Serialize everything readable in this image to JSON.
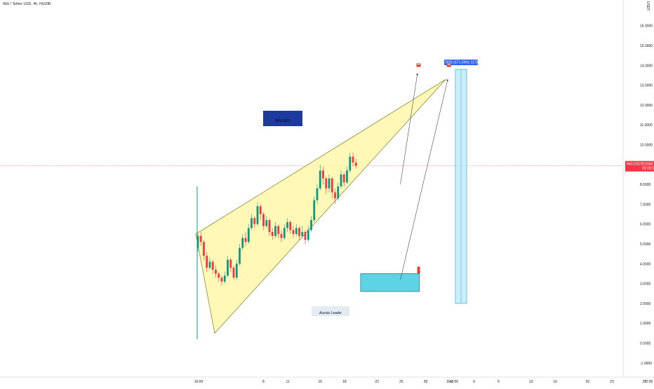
{
  "header": {
    "title": "IMX / Tether USD, 4h, HUOBI"
  },
  "currency": "USDT",
  "chart_data": {
    "type": "candlestick",
    "symbol": "IMXUSDT",
    "ylim": [
      -1.0,
      17.0
    ],
    "y_ticks": [
      "16.0000",
      "15.0000",
      "14.0000",
      "13.0000",
      "12.0000",
      "11.0000",
      "10.0000",
      "9.0000",
      "8.0000",
      "7.0000",
      "6.0000",
      "5.0000",
      "4.0000",
      "3.0000",
      "2.0000",
      "1.0000",
      "0.0000",
      "-1.0000"
    ],
    "y_tick_values": [
      16,
      15,
      14,
      13,
      12,
      11,
      10,
      9,
      8,
      7,
      6,
      5,
      4,
      3,
      2,
      1,
      0,
      -1
    ],
    "x_ticks": [
      "16:00",
      "8",
      "11",
      "15",
      "18",
      "22",
      "25",
      "28",
      "Dec",
      "12:00",
      "6",
      "9",
      "13",
      "16",
      "20",
      "23",
      "27",
      "12:00",
      "2022"
    ],
    "x_tick_days": [
      0,
      8,
      11,
      15,
      18,
      22,
      25,
      28,
      31,
      31.5,
      34,
      37,
      41,
      44,
      48,
      51,
      55,
      55.5,
      57
    ],
    "last_price": {
      "symbol": "IMXUSDT",
      "value": "8.9340",
      "countdown": "00:28:53",
      "numeric": 8.934
    },
    "annotations": {
      "chart_label": "IMXUSDT",
      "author_label": "Aussie Leader",
      "range_label": "11.7825 (571.59%) 117825"
    },
    "wedge": {
      "p1": [
        0,
        5.5
      ],
      "p2": [
        1,
        0.5
      ],
      "p3": [
        13.2,
        13.3
      ]
    },
    "target_bar": {
      "x0": 13.7,
      "x1": 14.3,
      "low": 2.0,
      "high": 13.8
    },
    "entry_box": {
      "x0": 8.7,
      "x1": 11.8,
      "low": 2.6,
      "high": 3.5
    },
    "arrows": [
      {
        "from": [
          10.8,
          8.0
        ],
        "to": [
          11.7,
          13.6
        ]
      },
      {
        "from": [
          10.8,
          3.2
        ],
        "to": [
          13.3,
          13.3
        ]
      }
    ],
    "volume_spike": {
      "x": 0,
      "low": 0.2,
      "high": 7.9
    },
    "candles": [
      [
        4.8,
        5.4,
        5.5,
        4.6
      ],
      [
        5.4,
        5.1,
        5.6,
        4.9
      ],
      [
        5.1,
        4.4,
        5.2,
        4.2
      ],
      [
        4.4,
        3.8,
        4.6,
        3.6
      ],
      [
        3.8,
        4.1,
        4.3,
        3.7
      ],
      [
        4.1,
        3.7,
        4.2,
        3.5
      ],
      [
        3.7,
        3.5,
        3.9,
        3.3
      ],
      [
        3.5,
        3.3,
        3.6,
        3.1
      ],
      [
        3.3,
        3.1,
        3.4,
        2.9
      ],
      [
        3.1,
        3.4,
        3.6,
        3.0
      ],
      [
        3.4,
        4.2,
        4.4,
        3.3
      ],
      [
        4.2,
        3.8,
        4.3,
        3.6
      ],
      [
        3.8,
        3.3,
        3.9,
        3.2
      ],
      [
        3.3,
        4.0,
        4.2,
        3.2
      ],
      [
        4.0,
        4.8,
        5.0,
        3.9
      ],
      [
        4.8,
        5.3,
        5.5,
        4.7
      ],
      [
        5.3,
        5.1,
        5.6,
        4.9
      ],
      [
        5.1,
        5.8,
        6.0,
        5.0
      ],
      [
        5.8,
        6.3,
        6.5,
        5.7
      ],
      [
        6.3,
        6.0,
        6.4,
        5.8
      ],
      [
        6.0,
        6.9,
        7.1,
        5.9
      ],
      [
        6.9,
        6.5,
        7.0,
        6.2
      ],
      [
        6.5,
        5.9,
        6.6,
        5.7
      ],
      [
        5.9,
        6.2,
        6.4,
        5.8
      ],
      [
        6.2,
        5.6,
        6.3,
        5.4
      ],
      [
        5.6,
        5.4,
        5.8,
        5.2
      ],
      [
        5.4,
        5.9,
        6.1,
        5.3
      ],
      [
        5.9,
        5.5,
        6.0,
        5.3
      ],
      [
        5.5,
        5.3,
        5.7,
        5.1
      ],
      [
        5.3,
        5.8,
        6.0,
        5.2
      ],
      [
        5.8,
        6.1,
        6.3,
        5.6
      ],
      [
        6.1,
        5.7,
        6.2,
        5.5
      ],
      [
        5.7,
        5.5,
        5.9,
        5.3
      ],
      [
        5.5,
        5.8,
        6.0,
        5.4
      ],
      [
        5.8,
        5.4,
        5.9,
        5.2
      ],
      [
        5.4,
        5.6,
        5.9,
        5.3
      ],
      [
        5.6,
        5.2,
        5.7,
        5.0
      ],
      [
        5.2,
        5.7,
        5.9,
        5.1
      ],
      [
        5.7,
        6.2,
        6.4,
        5.6
      ],
      [
        6.2,
        7.2,
        7.4,
        6.1
      ],
      [
        7.2,
        7.8,
        8.0,
        7.0
      ],
      [
        7.8,
        8.7,
        9.0,
        7.7
      ],
      [
        8.7,
        8.3,
        8.9,
        8.0
      ],
      [
        8.3,
        7.8,
        8.4,
        7.5
      ],
      [
        7.8,
        8.3,
        8.5,
        7.6
      ],
      [
        8.3,
        7.6,
        8.4,
        7.3
      ],
      [
        7.6,
        7.3,
        7.8,
        7.0
      ],
      [
        7.3,
        7.9,
        8.1,
        7.2
      ],
      [
        7.9,
        8.5,
        8.7,
        7.8
      ],
      [
        8.5,
        8.1,
        8.6,
        7.9
      ],
      [
        8.1,
        8.7,
        8.9,
        8.0
      ],
      [
        8.7,
        9.4,
        9.6,
        8.6
      ],
      [
        9.4,
        9.1,
        9.6,
        8.9
      ],
      [
        9.1,
        8.93,
        9.3,
        8.8
      ]
    ]
  }
}
